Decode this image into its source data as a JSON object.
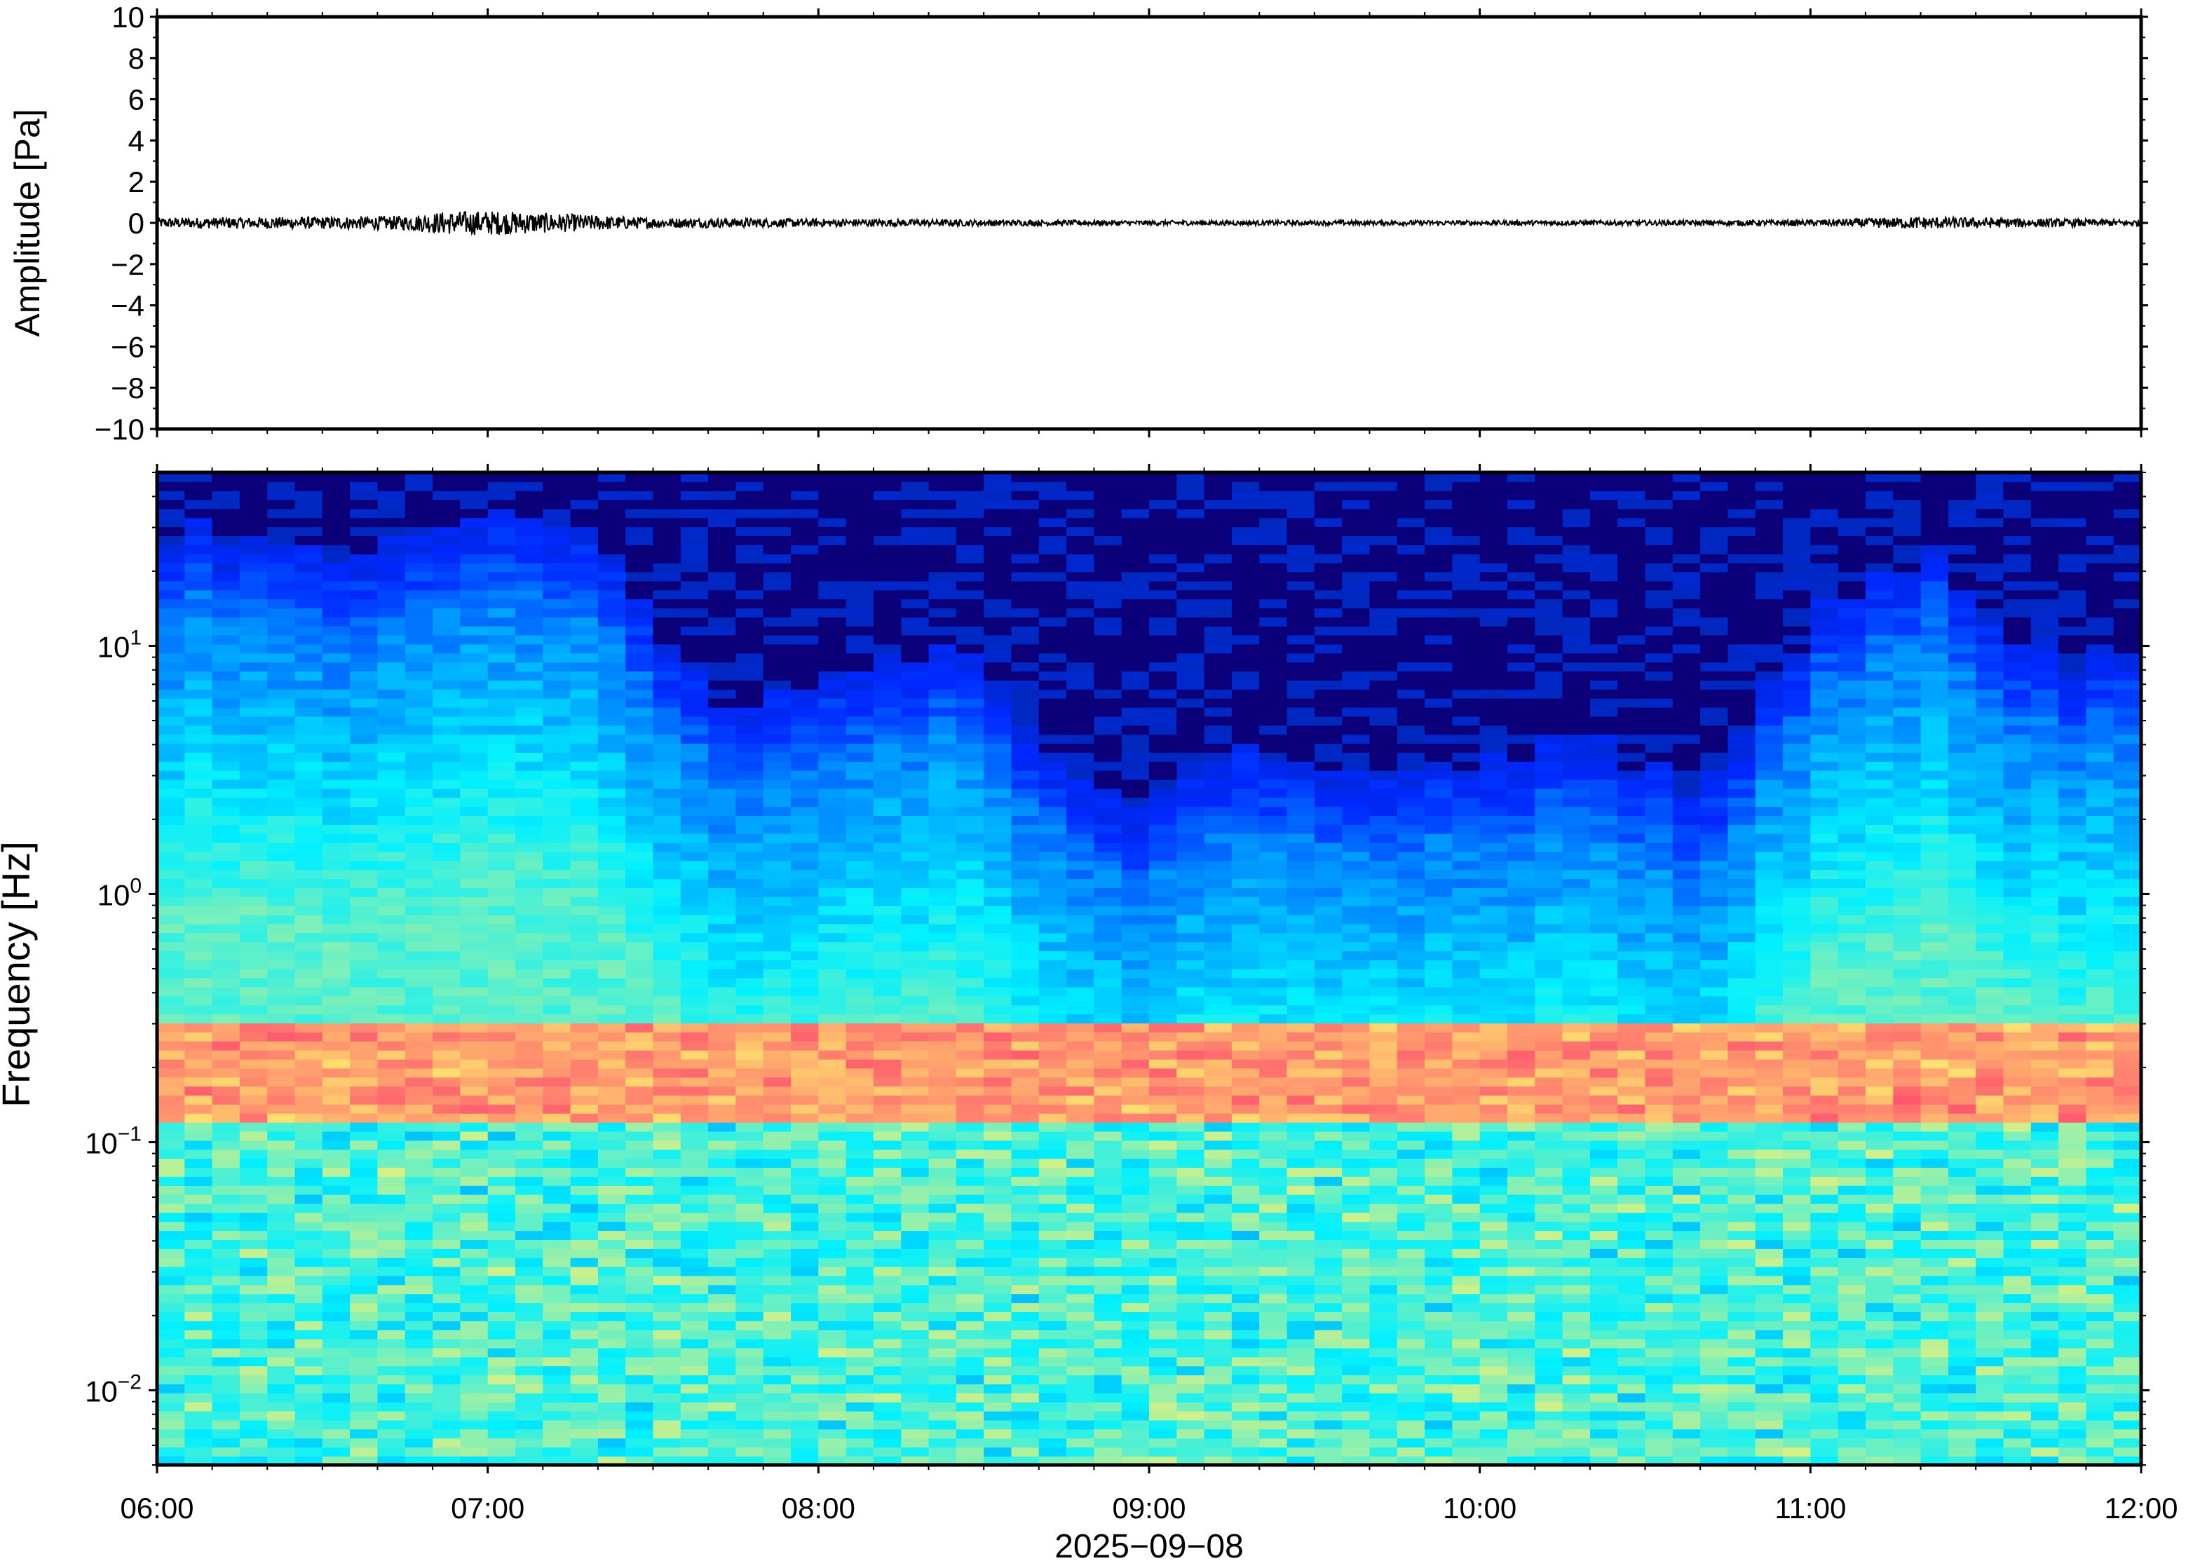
{
  "chart_data": [
    {
      "type": "line",
      "panel": "waveform",
      "ylabel": "Amplitude [Pa]",
      "ylim": [
        -10,
        10
      ],
      "yticks": [
        -10,
        -8,
        -6,
        -4,
        -2,
        0,
        2,
        4,
        6,
        8,
        10
      ],
      "ytick_labels": [
        "−10",
        "−8",
        "−6",
        "−4",
        "−2",
        "0",
        "2",
        "4",
        "6",
        "8",
        "10"
      ],
      "xlim": [
        "06:00",
        "12:00"
      ],
      "grid": false,
      "series": [
        {
          "color": "#000000",
          "x": [
            "06:00",
            "06:30",
            "06:45",
            "06:52",
            "07:00",
            "07:05",
            "07:30",
            "08:00",
            "08:30",
            "09:00",
            "09:30",
            "10:00",
            "10:30",
            "11:00",
            "11:20",
            "11:30",
            "12:00"
          ],
          "envelope_pa": [
            0.25,
            0.3,
            0.35,
            0.55,
            0.6,
            0.55,
            0.25,
            0.2,
            0.15,
            0.12,
            0.12,
            0.12,
            0.12,
            0.15,
            0.3,
            0.25,
            0.15
          ]
        }
      ]
    },
    {
      "type": "heatmap",
      "panel": "spectrogram",
      "ylabel": "Frequency [Hz]",
      "yscale": "log",
      "ylim_hz": [
        0.005,
        50
      ],
      "ytick_labels": [
        {
          "base": "10",
          "exp": "−2"
        },
        {
          "base": "10",
          "exp": "−1"
        },
        {
          "base": "10",
          "exp": "0"
        },
        {
          "base": "10",
          "exp": "1"
        }
      ],
      "xlabel": "2025−09−08",
      "xtick_labels": [
        "06:00",
        "07:00",
        "08:00",
        "09:00",
        "10:00",
        "11:00",
        "12:00"
      ],
      "colormap": "jet",
      "colorbar": false,
      "band_of_max_power_hz": [
        0.12,
        0.3
      ],
      "upper_cutoff_hz_by_time": {
        "x": [
          "06:00",
          "06:30",
          "07:00",
          "07:20",
          "07:40",
          "08:00",
          "08:30",
          "08:45",
          "09:00",
          "09:20",
          "09:40",
          "10:00",
          "10:20",
          "10:40",
          "11:00",
          "11:20",
          "11:40",
          "12:00"
        ],
        "hz": [
          15,
          12,
          20,
          12,
          3,
          4,
          5,
          1.5,
          1.2,
          2,
          1.5,
          2,
          2,
          1.3,
          6,
          12,
          5,
          4
        ]
      }
    }
  ]
}
